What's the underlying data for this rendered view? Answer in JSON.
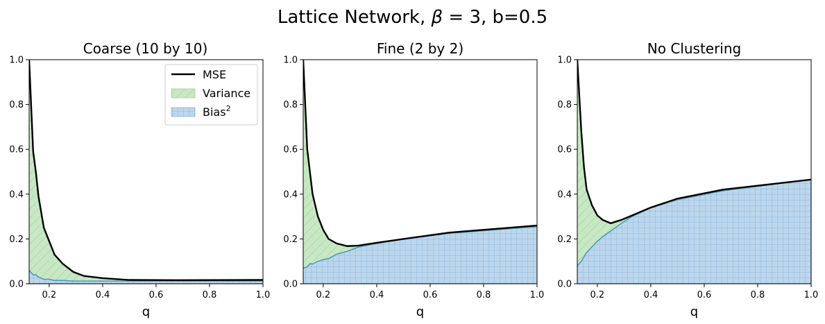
{
  "figure": {
    "suptitle_prefix": "Lattice Network, ",
    "suptitle_beta": "β",
    "suptitle_suffix": " = 3, b=0.5"
  },
  "legend": {
    "mse": "MSE",
    "variance": "Variance",
    "bias_base": "Bias",
    "bias_sup": "2"
  },
  "colors": {
    "mse_line": "#000000",
    "variance_fill": "#c8e8c4",
    "variance_hatch": "#9dd19a",
    "bias_fill": "#bcd6ec",
    "bias_hatch": "#8fb8db",
    "bias_line": "#4a9cb8"
  },
  "chart_data": [
    {
      "type": "area",
      "title": "Coarse (10 by 10)",
      "xlabel": "q",
      "ylabel": "",
      "xlim": [
        0.125,
        1.0
      ],
      "ylim": [
        0,
        1.0
      ],
      "xticks": [
        "0.2",
        "0.4",
        "0.6",
        "0.8",
        "1.0"
      ],
      "yticks": [
        "0.0",
        "0.2",
        "0.4",
        "0.6",
        "0.8",
        "1.0"
      ],
      "legend_position": "upper right",
      "x": [
        0.125,
        0.14,
        0.15,
        0.16,
        0.18,
        0.2,
        0.22,
        0.25,
        0.29,
        0.33,
        0.4,
        0.5,
        0.67,
        1.0
      ],
      "series": [
        {
          "name": "MSE",
          "values": [
            1.0,
            0.59,
            0.5,
            0.39,
            0.25,
            0.19,
            0.13,
            0.09,
            0.053,
            0.035,
            0.025,
            0.017,
            0.016,
            0.017
          ]
        },
        {
          "name": "Bias²",
          "values": [
            0.06,
            0.04,
            0.04,
            0.03,
            0.02,
            0.02,
            0.015,
            0.015,
            0.012,
            0.012,
            0.012,
            0.012,
            0.012,
            0.012
          ]
        }
      ]
    },
    {
      "type": "area",
      "title": "Fine (2 by 2)",
      "xlabel": "q",
      "ylabel": "",
      "xlim": [
        0.125,
        1.0
      ],
      "ylim": [
        0,
        1.0
      ],
      "xticks": [
        "0.2",
        "0.4",
        "0.6",
        "0.8",
        "1.0"
      ],
      "yticks": [
        "0.0",
        "0.2",
        "0.4",
        "0.6",
        "0.8",
        "1.0"
      ],
      "x": [
        0.125,
        0.14,
        0.15,
        0.16,
        0.18,
        0.2,
        0.22,
        0.25,
        0.29,
        0.33,
        0.4,
        0.5,
        0.67,
        1.0
      ],
      "series": [
        {
          "name": "MSE",
          "values": [
            1.0,
            0.6,
            0.5,
            0.4,
            0.3,
            0.24,
            0.2,
            0.18,
            0.168,
            0.17,
            0.183,
            0.2,
            0.228,
            0.26
          ]
        },
        {
          "name": "Bias²",
          "values": [
            0.07,
            0.075,
            0.09,
            0.088,
            0.1,
            0.108,
            0.112,
            0.132,
            0.145,
            0.163,
            0.18,
            0.2,
            0.225,
            0.255
          ]
        }
      ]
    },
    {
      "type": "area",
      "title": "No Clustering",
      "xlabel": "q",
      "ylabel": "",
      "xlim": [
        0.125,
        1.0
      ],
      "ylim": [
        0,
        1.0
      ],
      "xticks": [
        "0.2",
        "0.4",
        "0.6",
        "0.8",
        "1.0"
      ],
      "yticks": [
        "0.0",
        "0.2",
        "0.4",
        "0.6",
        "0.8",
        "1.0"
      ],
      "x": [
        0.125,
        0.14,
        0.15,
        0.16,
        0.18,
        0.2,
        0.22,
        0.25,
        0.29,
        0.33,
        0.4,
        0.5,
        0.67,
        1.0
      ],
      "series": [
        {
          "name": "MSE",
          "values": [
            1.0,
            0.68,
            0.52,
            0.42,
            0.35,
            0.305,
            0.285,
            0.27,
            0.285,
            0.305,
            0.34,
            0.38,
            0.42,
            0.465
          ]
        },
        {
          "name": "Bias²",
          "values": [
            0.08,
            0.1,
            0.12,
            0.14,
            0.165,
            0.19,
            0.21,
            0.235,
            0.27,
            0.3,
            0.34,
            0.375,
            0.415,
            0.465
          ]
        }
      ]
    }
  ]
}
